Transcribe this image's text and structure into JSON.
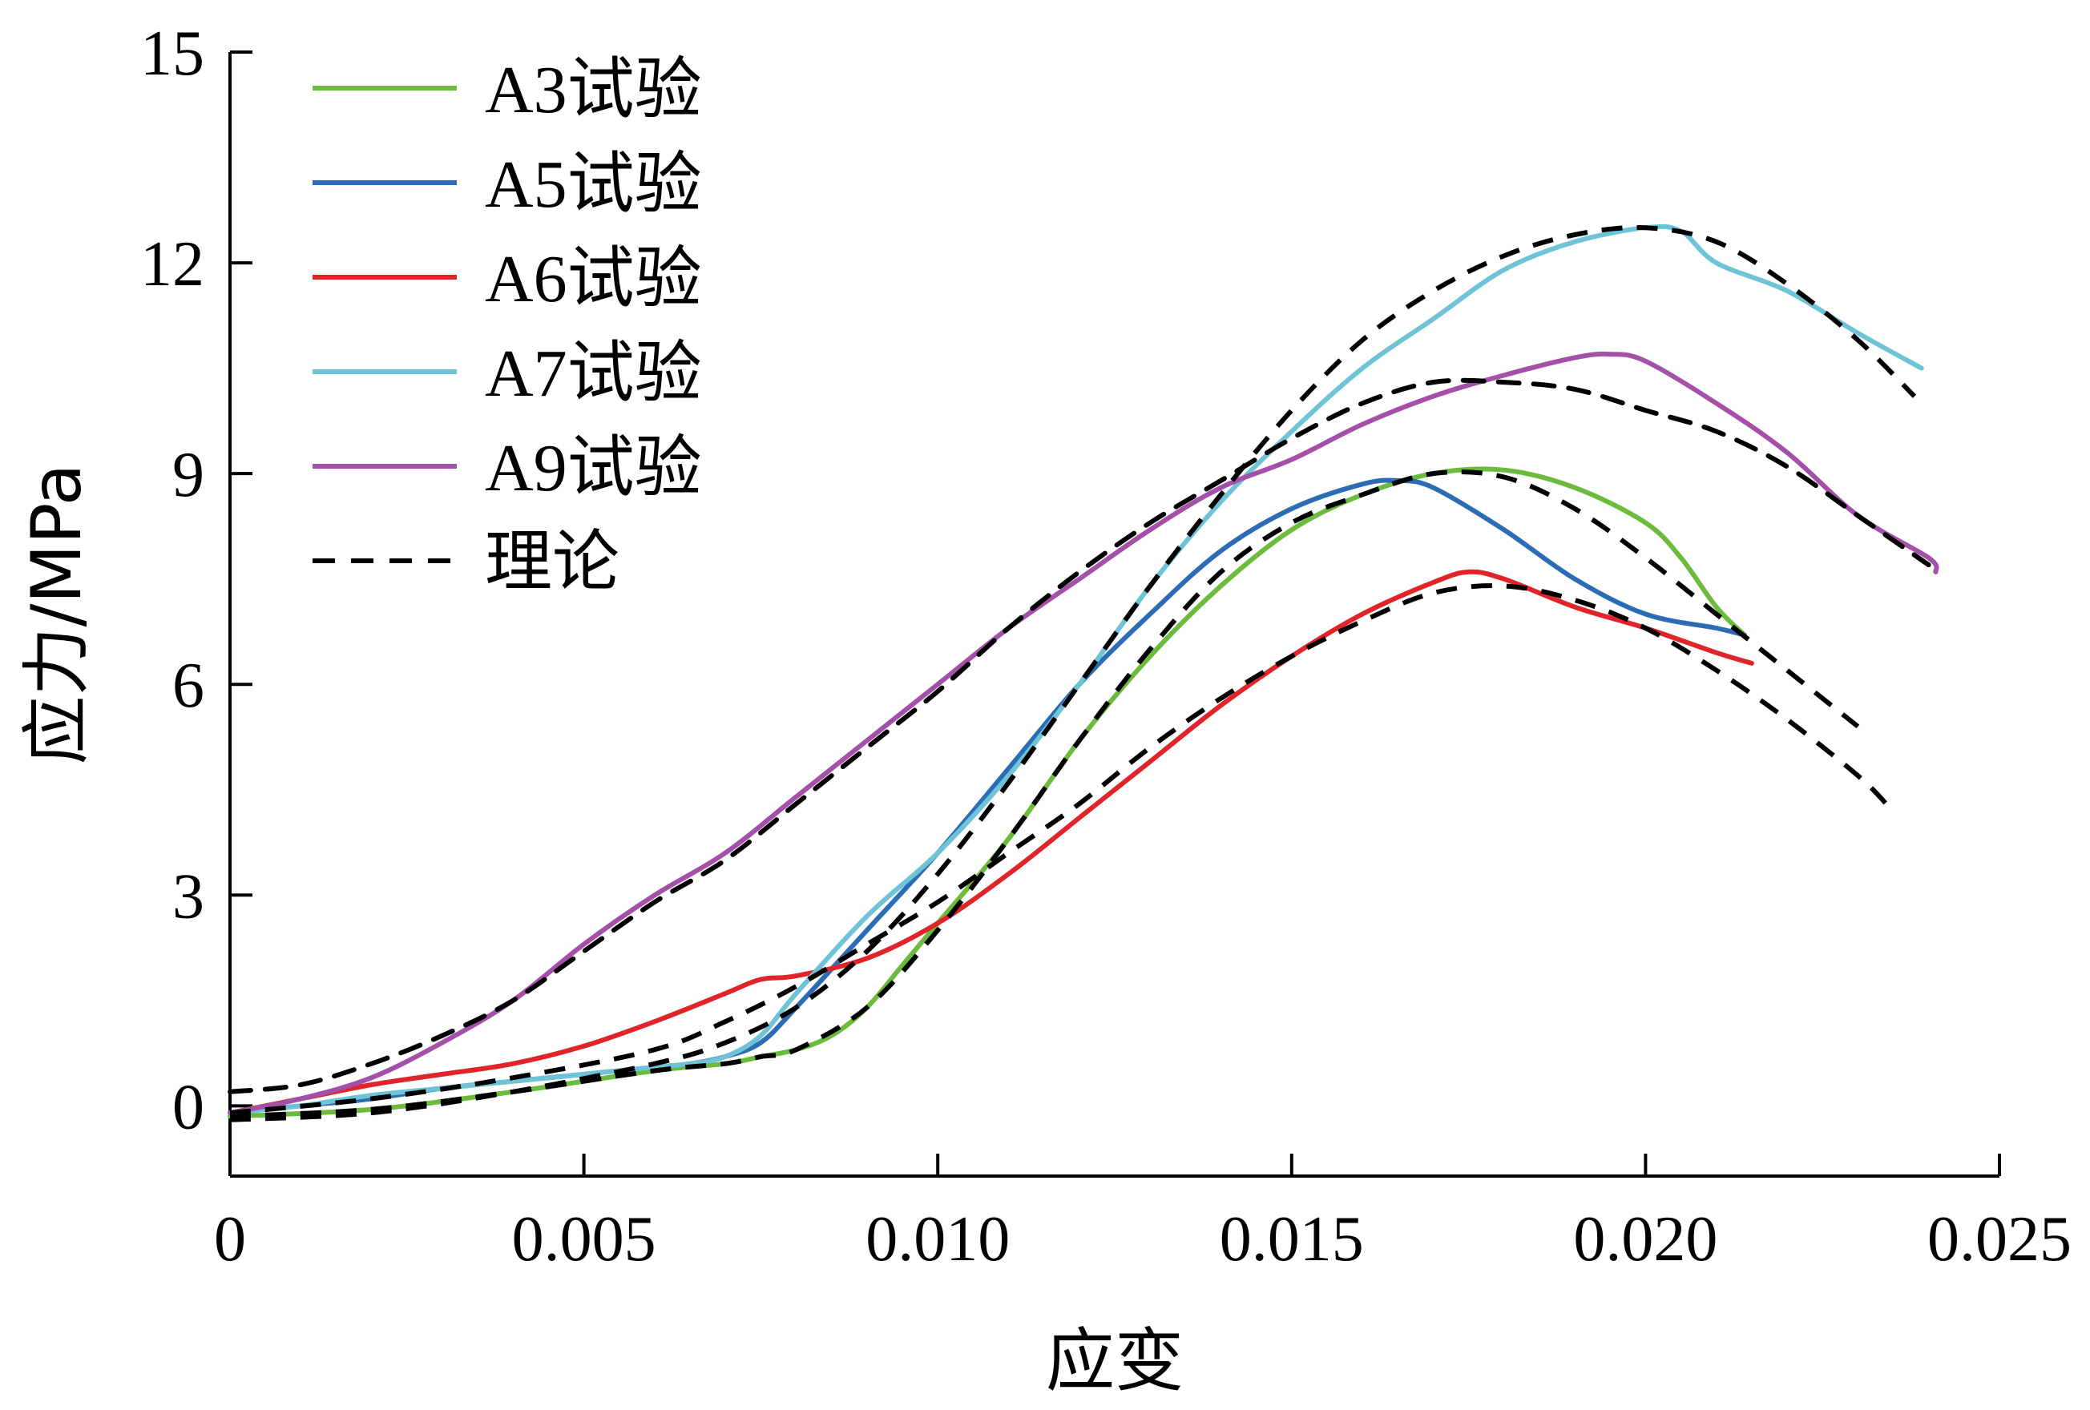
{
  "chart_data": {
    "type": "line",
    "title": "",
    "xlabel": "应变",
    "ylabel": "应力/MPa",
    "xlim": [
      0,
      0.025
    ],
    "ylim": [
      -1,
      15
    ],
    "xticks": [
      0,
      0.005,
      0.01,
      0.015,
      0.02,
      0.025
    ],
    "xtick_labels": [
      "0",
      "0.005",
      "0.010",
      "0.015",
      "0.020",
      "0.025"
    ],
    "yticks": [
      0,
      3,
      6,
      9,
      12,
      15
    ],
    "ytick_labels": [
      "0",
      "3",
      "6",
      "9",
      "12",
      "15"
    ],
    "grid": false,
    "legend_position": "top-left",
    "series": [
      {
        "name": "A3试验",
        "color": "#6cbb3c",
        "style": "solid",
        "x": [
          0,
          0.002,
          0.004,
          0.006,
          0.007,
          0.0075,
          0.008,
          0.0085,
          0.009,
          0.0095,
          0.01,
          0.011,
          0.012,
          0.013,
          0.014,
          0.015,
          0.016,
          0.017,
          0.018,
          0.019,
          0.02,
          0.0205,
          0.021,
          0.0214
        ],
        "y": [
          -0.15,
          -0.05,
          0.2,
          0.5,
          0.6,
          0.7,
          0.8,
          1.0,
          1.4,
          2.0,
          2.6,
          3.8,
          5.2,
          6.4,
          7.4,
          8.2,
          8.7,
          9.0,
          9.05,
          8.8,
          8.3,
          7.8,
          7.1,
          6.7
        ]
      },
      {
        "name": "A5试验",
        "color": "#2b6cb5",
        "style": "solid",
        "x": [
          0,
          0.001,
          0.002,
          0.003,
          0.004,
          0.005,
          0.006,
          0.0065,
          0.007,
          0.0075,
          0.008,
          0.009,
          0.01,
          0.011,
          0.012,
          0.013,
          0.014,
          0.015,
          0.016,
          0.0165,
          0.017,
          0.018,
          0.019,
          0.02,
          0.021,
          0.0214
        ],
        "y": [
          -0.1,
          0.0,
          0.1,
          0.25,
          0.35,
          0.45,
          0.55,
          0.6,
          0.7,
          0.9,
          1.4,
          2.5,
          3.6,
          4.8,
          6.0,
          7.0,
          7.9,
          8.5,
          8.85,
          8.9,
          8.8,
          8.2,
          7.5,
          7.0,
          6.8,
          6.7
        ]
      },
      {
        "name": "A6试验",
        "color": "#e0242a",
        "style": "solid",
        "x": [
          0,
          0.001,
          0.002,
          0.003,
          0.004,
          0.005,
          0.006,
          0.007,
          0.0075,
          0.008,
          0.009,
          0.01,
          0.011,
          0.012,
          0.013,
          0.014,
          0.015,
          0.016,
          0.017,
          0.0175,
          0.018,
          0.019,
          0.02,
          0.021,
          0.0215
        ],
        "y": [
          -0.1,
          0.1,
          0.3,
          0.45,
          0.6,
          0.85,
          1.2,
          1.6,
          1.8,
          1.85,
          2.1,
          2.6,
          3.3,
          4.1,
          4.9,
          5.7,
          6.4,
          7.0,
          7.45,
          7.6,
          7.5,
          7.1,
          6.8,
          6.45,
          6.3
        ]
      },
      {
        "name": "A7试验",
        "color": "#6ec4d6",
        "style": "solid",
        "x": [
          0,
          0.001,
          0.002,
          0.003,
          0.004,
          0.005,
          0.006,
          0.0065,
          0.007,
          0.0075,
          0.008,
          0.009,
          0.01,
          0.011,
          0.012,
          0.013,
          0.014,
          0.015,
          0.016,
          0.017,
          0.018,
          0.019,
          0.02,
          0.0205,
          0.021,
          0.022,
          0.023,
          0.0239
        ],
        "y": [
          -0.1,
          0.0,
          0.15,
          0.25,
          0.35,
          0.45,
          0.55,
          0.6,
          0.7,
          1.0,
          1.6,
          2.7,
          3.6,
          4.7,
          6.0,
          7.4,
          8.6,
          9.6,
          10.5,
          11.2,
          11.9,
          12.3,
          12.5,
          12.45,
          12.0,
          11.6,
          11.0,
          10.5
        ]
      },
      {
        "name": "A9试验",
        "color": "#a44fa8",
        "style": "solid",
        "x": [
          0,
          0.001,
          0.002,
          0.003,
          0.004,
          0.005,
          0.006,
          0.007,
          0.008,
          0.009,
          0.01,
          0.011,
          0.012,
          0.013,
          0.014,
          0.015,
          0.016,
          0.017,
          0.018,
          0.019,
          0.0195,
          0.02,
          0.021,
          0.022,
          0.023,
          0.024,
          0.0241
        ],
        "y": [
          -0.1,
          0.1,
          0.4,
          0.9,
          1.5,
          2.3,
          3.0,
          3.6,
          4.4,
          5.2,
          6.0,
          6.8,
          7.5,
          8.2,
          8.8,
          9.2,
          9.7,
          10.1,
          10.4,
          10.65,
          10.7,
          10.6,
          10.0,
          9.3,
          8.4,
          7.8,
          7.6
        ]
      },
      {
        "name": "理论",
        "color": "#000000",
        "style": "dashed",
        "x": [
          0,
          0.001,
          0.002,
          0.003,
          0.004,
          0.005,
          0.006,
          0.007,
          0.008,
          0.009,
          0.01,
          0.011,
          0.012,
          0.013,
          0.014,
          0.015,
          0.016,
          0.017,
          0.018,
          0.019,
          0.02,
          0.021,
          0.022,
          0.023,
          0.024
        ],
        "y": [
          0.2,
          0.3,
          0.6,
          1.0,
          1.5,
          2.2,
          2.9,
          3.5,
          4.3,
          5.1,
          5.9,
          6.8,
          7.6,
          8.3,
          8.9,
          9.5,
          10.0,
          10.3,
          10.3,
          10.2,
          9.9,
          9.6,
          9.1,
          8.4,
          7.7
        ]
      }
    ],
    "theory_extra_curves": [
      {
        "x": [
          0,
          0.002,
          0.004,
          0.006,
          0.007,
          0.008,
          0.009,
          0.01,
          0.011,
          0.012,
          0.013,
          0.014,
          0.015,
          0.016,
          0.017,
          0.018,
          0.019,
          0.02,
          0.021,
          0.022,
          0.023,
          0.0238
        ],
        "y": [
          -0.2,
          -0.1,
          0.2,
          0.6,
          0.9,
          1.4,
          2.2,
          3.3,
          4.6,
          6.0,
          7.4,
          8.7,
          9.9,
          10.9,
          11.6,
          12.1,
          12.4,
          12.5,
          12.3,
          11.7,
          10.9,
          10.1
        ]
      },
      {
        "x": [
          0,
          0.002,
          0.004,
          0.006,
          0.007,
          0.0075,
          0.008,
          0.009,
          0.01,
          0.011,
          0.012,
          0.013,
          0.014,
          0.015,
          0.016,
          0.017,
          0.018,
          0.019,
          0.02,
          0.021,
          0.022,
          0.023
        ],
        "y": [
          -0.15,
          -0.05,
          0.2,
          0.5,
          0.6,
          0.7,
          0.8,
          1.4,
          2.5,
          3.8,
          5.2,
          6.5,
          7.6,
          8.3,
          8.7,
          9.0,
          8.95,
          8.5,
          7.8,
          7.0,
          6.2,
          5.4
        ]
      },
      {
        "x": [
          0,
          0.002,
          0.004,
          0.006,
          0.007,
          0.008,
          0.009,
          0.01,
          0.011,
          0.012,
          0.013,
          0.014,
          0.015,
          0.016,
          0.017,
          0.018,
          0.019,
          0.02,
          0.021,
          0.022,
          0.023,
          0.0234
        ],
        "y": [
          -0.1,
          0.1,
          0.4,
          0.8,
          1.2,
          1.7,
          2.3,
          2.9,
          3.6,
          4.3,
          5.1,
          5.8,
          6.4,
          6.9,
          7.3,
          7.4,
          7.2,
          6.8,
          6.2,
          5.5,
          4.7,
          4.3
        ]
      }
    ]
  }
}
